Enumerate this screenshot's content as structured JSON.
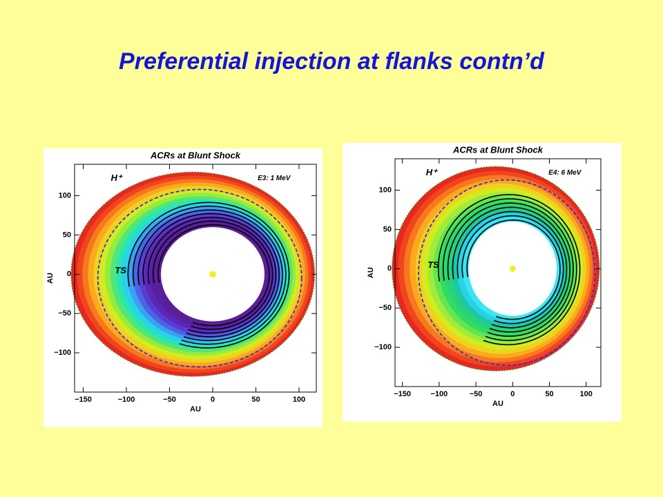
{
  "title": "Preferential injection at flanks contn’d",
  "chart_data": [
    {
      "type": "contour",
      "title": "ACRs at Blunt Shock",
      "xlabel": "AU",
      "ylabel": "AU",
      "annotations": [
        "H⁺",
        "E3: 1 MeV",
        "TS"
      ],
      "xlim": [
        -160,
        120
      ],
      "ylim": [
        -150,
        140
      ],
      "xticks": [
        {
          "value": -150,
          "label": "−150"
        },
        {
          "value": -100,
          "label": "−100"
        },
        {
          "value": -50,
          "label": "−50"
        },
        0,
        50,
        100
      ],
      "yticks": [
        {
          "value": -100,
          "label": "−100"
        },
        {
          "value": -50,
          "label": "−50"
        },
        0,
        50,
        100
      ]
    },
    {
      "type": "contour",
      "title": "ACRs at Blunt Shock",
      "xlabel": "AU",
      "ylabel": "AU",
      "annotations": [
        "H⁺",
        "E4: 6 MeV",
        "TS"
      ],
      "xlim": [
        -160,
        120
      ],
      "ylim": [
        -150,
        140
      ],
      "xticks": [
        {
          "value": -150,
          "label": "−150"
        },
        {
          "value": -100,
          "label": "−100"
        },
        {
          "value": -50,
          "label": "−50"
        },
        0,
        50,
        100
      ],
      "yticks": [
        {
          "value": -100,
          "label": "−100"
        },
        {
          "value": -50,
          "label": "−50"
        },
        0,
        50,
        100
      ]
    }
  ]
}
